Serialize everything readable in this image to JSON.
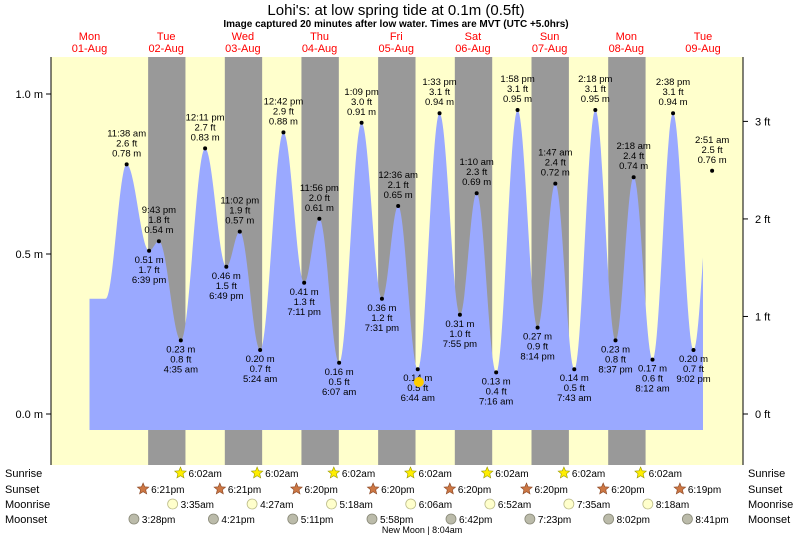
{
  "title": "Lohi's: at low  spring tide at 0.1m (0.5ft)",
  "subtitle": "Image captured 20 minutes after low water. Times are MVT (UTC +5.0hrs)",
  "colors": {
    "day": "#ffffcc",
    "night": "#999999",
    "water": "#9aa9ff",
    "day_label": "#ff0000",
    "marker": "#000000",
    "current": "#ffcc00"
  },
  "chart_data": {
    "type": "area",
    "title": "Lohi's: at low  spring tide at 0.1m (0.5ft)",
    "y_left_ticks": [
      {
        "value": 0.0,
        "label": "0.0 m"
      },
      {
        "value": 0.5,
        "label": "0.5 m"
      },
      {
        "value": 1.0,
        "label": "1.0 m"
      }
    ],
    "y_right_ticks": [
      {
        "value": 0.0,
        "label": "0 ft"
      },
      {
        "value": 0.3048,
        "label": "1 ft"
      },
      {
        "value": 0.6096,
        "label": "2 ft"
      },
      {
        "value": 0.9144,
        "label": "3 ft"
      }
    ],
    "ylim_m": [
      -0.11,
      1.1
    ],
    "x_range_hours": [
      0,
      192
    ],
    "days": [
      {
        "weekday": "Mon",
        "date": "01-Aug",
        "hour": 0
      },
      {
        "weekday": "Tue",
        "date": "02-Aug",
        "hour": 24
      },
      {
        "weekday": "Wed",
        "date": "03-Aug",
        "hour": 48
      },
      {
        "weekday": "Thu",
        "date": "04-Aug",
        "hour": 72
      },
      {
        "weekday": "Fri",
        "date": "05-Aug",
        "hour": 96
      },
      {
        "weekday": "Sat",
        "date": "06-Aug",
        "hour": 120
      },
      {
        "weekday": "Sun",
        "date": "07-Aug",
        "hour": 144
      },
      {
        "weekday": "Mon",
        "date": "08-Aug",
        "hour": 168
      },
      {
        "weekday": "Tue",
        "date": "09-Aug",
        "hour": 192
      }
    ],
    "tides": [
      {
        "time": "11:38 am",
        "ft": "2.6 ft",
        "m": "0.78 m",
        "height": 0.78,
        "hour": 11.63,
        "type": "high"
      },
      {
        "time": "6:39 pm",
        "ft": "1.7 ft",
        "m": "0.51 m",
        "height": 0.51,
        "hour": 18.65,
        "type": "low"
      },
      {
        "time": "9:43 pm",
        "ft": "1.8 ft",
        "m": "0.54 m",
        "height": 0.54,
        "hour": 21.72,
        "type": "high"
      },
      {
        "time": "4:35 am",
        "ft": "0.8 ft",
        "m": "0.23 m",
        "height": 0.23,
        "hour": 28.58,
        "type": "low"
      },
      {
        "time": "12:11 pm",
        "ft": "2.7 ft",
        "m": "0.83 m",
        "height": 0.83,
        "hour": 36.18,
        "type": "high"
      },
      {
        "time": "6:49 pm",
        "ft": "1.5 ft",
        "m": "0.46 m",
        "height": 0.46,
        "hour": 42.82,
        "type": "low"
      },
      {
        "time": "11:02 pm",
        "ft": "1.9 ft",
        "m": "0.57 m",
        "height": 0.57,
        "hour": 47.03,
        "type": "high"
      },
      {
        "time": "5:24 am",
        "ft": "0.7 ft",
        "m": "0.20 m",
        "height": 0.2,
        "hour": 53.4,
        "type": "low"
      },
      {
        "time": "12:42 pm",
        "ft": "2.9 ft",
        "m": "0.88 m",
        "height": 0.88,
        "hour": 60.7,
        "type": "high"
      },
      {
        "time": "7:11 pm",
        "ft": "1.3 ft",
        "m": "0.41 m",
        "height": 0.41,
        "hour": 67.18,
        "type": "low"
      },
      {
        "time": "11:56 pm",
        "ft": "2.0 ft",
        "m": "0.61 m",
        "height": 0.61,
        "hour": 71.93,
        "type": "high"
      },
      {
        "time": "6:07 am",
        "ft": "0.5 ft",
        "m": "0.16 m",
        "height": 0.16,
        "hour": 78.12,
        "type": "low"
      },
      {
        "time": "1:09 pm",
        "ft": "3.0 ft",
        "m": "0.91 m",
        "height": 0.91,
        "hour": 85.15,
        "type": "high"
      },
      {
        "time": "7:31 pm",
        "ft": "1.2 ft",
        "m": "0.36 m",
        "height": 0.36,
        "hour": 91.52,
        "type": "low"
      },
      {
        "time": "12:36 am",
        "ft": "2.1 ft",
        "m": "0.65 m",
        "height": 0.65,
        "hour": 96.6,
        "type": "high"
      },
      {
        "time": "6:44 am",
        "ft": "0.5 ft",
        "m": "0.14 m",
        "height": 0.14,
        "hour": 102.73,
        "type": "low"
      },
      {
        "time": "1:33 pm",
        "ft": "3.1 ft",
        "m": "0.94 m",
        "height": 0.94,
        "hour": 109.55,
        "type": "high"
      },
      {
        "time": "7:55 pm",
        "ft": "1.0 ft",
        "m": "0.31 m",
        "height": 0.31,
        "hour": 115.92,
        "type": "low"
      },
      {
        "time": "1:10 am",
        "ft": "2.3 ft",
        "m": "0.69 m",
        "height": 0.69,
        "hour": 121.17,
        "type": "high"
      },
      {
        "time": "7:16 am",
        "ft": "0.4 ft",
        "m": "0.13 m",
        "height": 0.13,
        "hour": 127.27,
        "type": "low"
      },
      {
        "time": "1:58 pm",
        "ft": "3.1 ft",
        "m": "0.95 m",
        "height": 0.95,
        "hour": 133.97,
        "type": "high"
      },
      {
        "time": "8:14 pm",
        "ft": "0.9 ft",
        "m": "0.27 m",
        "height": 0.27,
        "hour": 140.23,
        "type": "low"
      },
      {
        "time": "1:47 am",
        "ft": "2.4 ft",
        "m": "0.72 m",
        "height": 0.72,
        "hour": 145.78,
        "type": "high"
      },
      {
        "time": "7:43 am",
        "ft": "0.5 ft",
        "m": "0.14 m",
        "height": 0.14,
        "hour": 151.72,
        "type": "low"
      },
      {
        "time": "2:18 pm",
        "ft": "3.1 ft",
        "m": "0.95 m",
        "height": 0.95,
        "hour": 158.3,
        "type": "high"
      },
      {
        "time": "8:37 pm",
        "ft": "0.8 ft",
        "m": "0.23 m",
        "height": 0.23,
        "hour": 164.62,
        "type": "low"
      },
      {
        "time": "2:18 am",
        "ft": "2.4 ft",
        "m": "0.74 m",
        "height": 0.74,
        "hour": 170.3,
        "type": "high"
      },
      {
        "time": "8:12 am",
        "ft": "0.6 ft",
        "m": "0.17 m",
        "height": 0.17,
        "hour": 176.2,
        "type": "low"
      },
      {
        "time": "2:38 pm",
        "ft": "3.1 ft",
        "m": "0.94 m",
        "height": 0.94,
        "hour": 182.63,
        "type": "high"
      },
      {
        "time": "9:02 pm",
        "ft": "0.7 ft",
        "m": "0.20 m",
        "height": 0.2,
        "hour": 189.03,
        "type": "low"
      },
      {
        "time": "2:51 am",
        "ft": "2.5 ft",
        "m": "0.76 m",
        "height": 0.76,
        "hour": 194.85,
        "type": "high"
      }
    ],
    "current": {
      "hour": 103.07,
      "height": 0.1
    },
    "night_ranges": [
      [
        18.35,
        30.03
      ],
      [
        42.35,
        54.03
      ],
      [
        66.33,
        78.03
      ],
      [
        90.33,
        102.03
      ],
      [
        114.33,
        126.03
      ],
      [
        138.33,
        150.03
      ],
      [
        162.33,
        174.03
      ]
    ],
    "sun_moon_rows": [
      {
        "label": "Sunrise",
        "type": "sunrise",
        "events": [
          {
            "hour": 30.03,
            "text": "6:02am"
          },
          {
            "hour": 54.03,
            "text": "6:02am"
          },
          {
            "hour": 78.03,
            "text": "6:02am"
          },
          {
            "hour": 102.03,
            "text": "6:02am"
          },
          {
            "hour": 126.03,
            "text": "6:02am"
          },
          {
            "hour": 150.03,
            "text": "6:02am"
          },
          {
            "hour": 174.03,
            "text": "6:02am"
          }
        ]
      },
      {
        "label": "Sunset",
        "type": "sunset",
        "events": [
          {
            "hour": 18.35,
            "text": "6:21pm"
          },
          {
            "hour": 42.35,
            "text": "6:21pm"
          },
          {
            "hour": 66.33,
            "text": "6:20pm"
          },
          {
            "hour": 90.33,
            "text": "6:20pm"
          },
          {
            "hour": 114.33,
            "text": "6:20pm"
          },
          {
            "hour": 138.33,
            "text": "6:20pm"
          },
          {
            "hour": 162.33,
            "text": "6:20pm"
          },
          {
            "hour": 186.32,
            "text": "6:19pm"
          }
        ]
      },
      {
        "label": "Moonrise",
        "type": "moonrise",
        "events": [
          {
            "hour": 27.58,
            "text": "3:35am"
          },
          {
            "hour": 52.45,
            "text": "4:27am"
          },
          {
            "hour": 77.3,
            "text": "5:18am"
          },
          {
            "hour": 102.1,
            "text": "6:06am"
          },
          {
            "hour": 126.87,
            "text": "6:52am"
          },
          {
            "hour": 151.58,
            "text": "7:35am"
          },
          {
            "hour": 176.3,
            "text": "8:18am"
          }
        ]
      },
      {
        "label": "Moonset",
        "type": "moonset",
        "events": [
          {
            "hour": 15.47,
            "text": "3:28pm"
          },
          {
            "hour": 40.35,
            "text": "4:21pm"
          },
          {
            "hour": 65.18,
            "text": "5:11pm"
          },
          {
            "hour": 89.97,
            "text": "5:58pm"
          },
          {
            "hour": 114.7,
            "text": "6:42pm"
          },
          {
            "hour": 139.38,
            "text": "7:23pm"
          },
          {
            "hour": 164.03,
            "text": "8:02pm"
          },
          {
            "hour": 188.68,
            "text": "8:41pm"
          }
        ]
      }
    ],
    "moon_phase_note": "New Moon | 8:04am",
    "moon_phase_hour": 104.07
  }
}
